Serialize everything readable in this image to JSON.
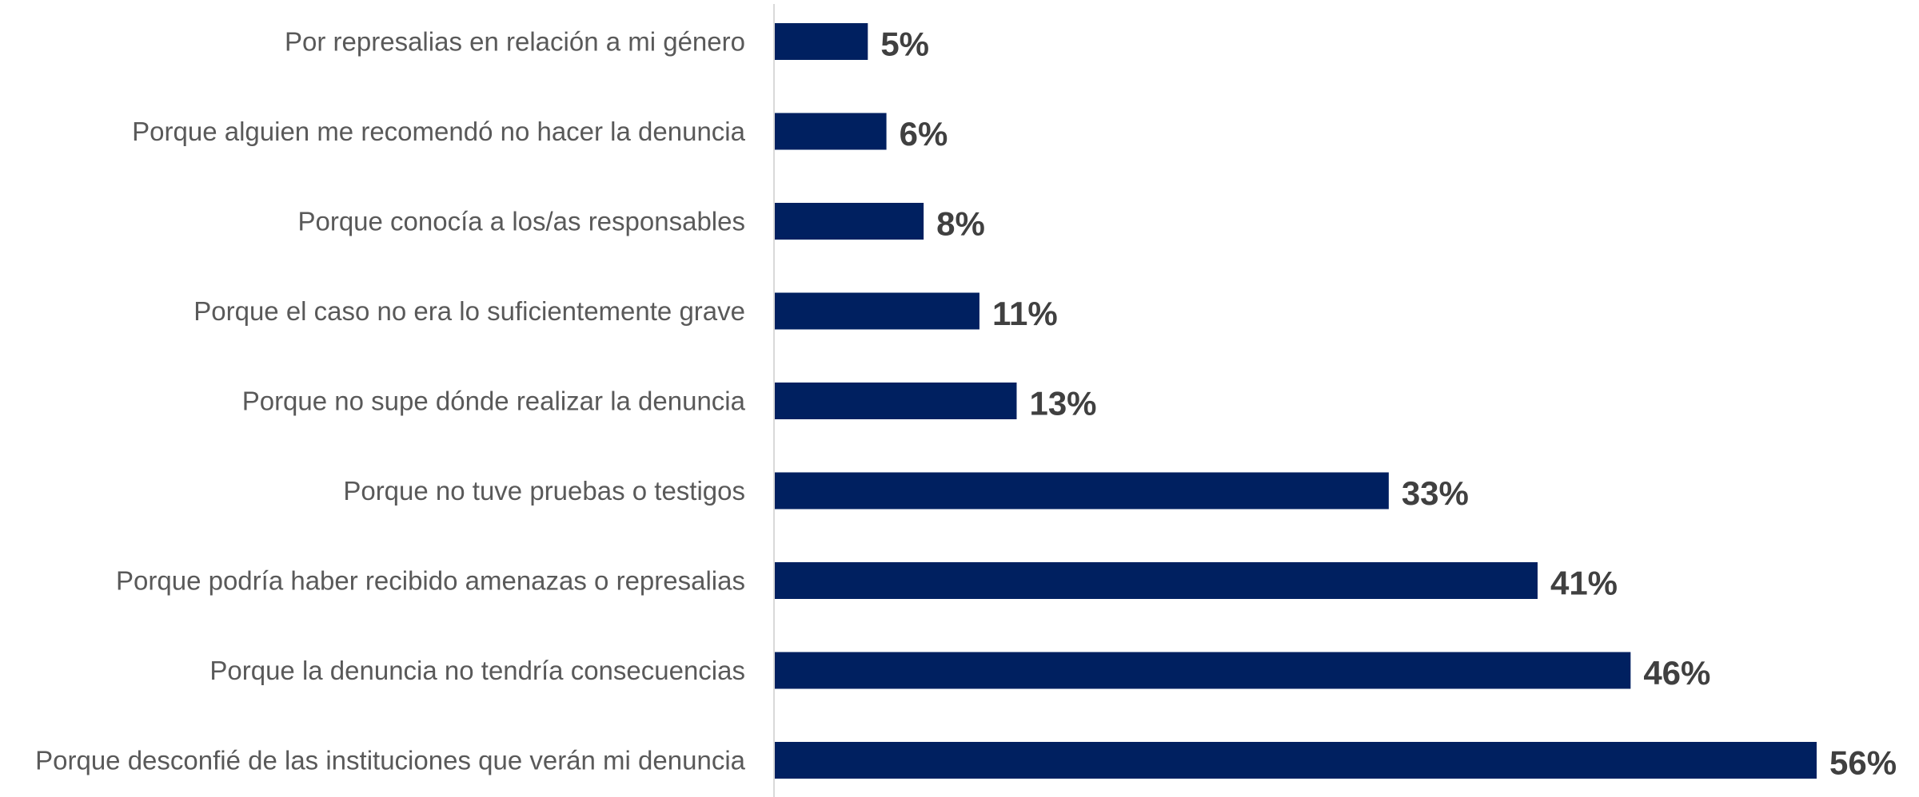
{
  "chart_data": {
    "type": "bar",
    "orientation": "horizontal",
    "categories": [
      "Por represalias en relación a mi género",
      "Porque alguien me recomendó no hacer la denuncia",
      "Porque conocía a los/as responsables",
      "Porque el caso no era lo suficientemente grave",
      "Porque no supe dónde realizar la denuncia",
      "Porque no tuve pruebas o testigos",
      "Porque podría haber recibido amenazas o represalias",
      "Porque la denuncia no tendría consecuencias",
      "Porque desconfié de las instituciones que verán mi denuncia"
    ],
    "values": [
      5,
      6,
      8,
      11,
      13,
      33,
      41,
      46,
      56
    ],
    "value_labels": [
      "5%",
      "6%",
      "8%",
      "11%",
      "13%",
      "33%",
      "41%",
      "46%",
      "56%"
    ],
    "unit": "%",
    "title": "",
    "xlabel": "",
    "ylabel": "",
    "xlim": [
      0,
      56
    ],
    "grid": false,
    "legend": "none",
    "bar_color": "#002060",
    "axis_color": "#d9d9d9"
  }
}
